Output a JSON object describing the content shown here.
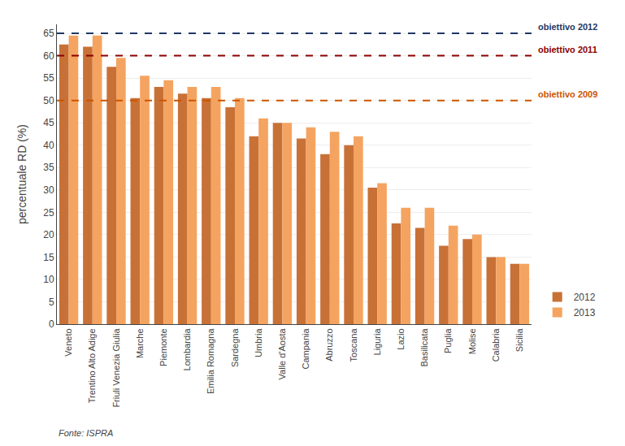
{
  "chart_data": {
    "type": "bar",
    "categories": [
      "Veneto",
      "Trentino Alto Adige",
      "Friuli Venezia Giulia",
      "Marche",
      "Piemonte",
      "Lombardia",
      "Emilia Romagna",
      "Sardegna",
      "Umbria",
      "Valle d'Aosta",
      "Campania",
      "Abruzzo",
      "Toscana",
      "Liguria",
      "Lazio",
      "Basilicata",
      "Puglia",
      "Molise",
      "Calabria",
      "Sicilia"
    ],
    "series": [
      {
        "name": "2012",
        "color": "#C87137",
        "values": [
          62.5,
          62.0,
          57.5,
          50.5,
          53.0,
          51.5,
          50.5,
          48.5,
          42.0,
          45.0,
          41.5,
          38.0,
          40.0,
          30.5,
          22.5,
          21.5,
          17.5,
          19.0,
          15.0,
          13.5
        ]
      },
      {
        "name": "2013",
        "color": "#F4A460",
        "values": [
          64.5,
          64.5,
          59.5,
          55.5,
          54.5,
          53.0,
          53.0,
          50.5,
          46.0,
          45.0,
          44.0,
          43.0,
          42.0,
          31.5,
          26.0,
          26.0,
          22.0,
          20.0,
          15.0,
          13.5
        ]
      }
    ],
    "y_label": "percentuale RD (%)",
    "ylim": [
      0,
      67
    ],
    "yticks": [
      0,
      5,
      10,
      15,
      20,
      25,
      30,
      35,
      40,
      45,
      50,
      55,
      60,
      65
    ],
    "grid": true,
    "legend": "lower right",
    "annotations": [
      {
        "text": "obiettivo 2012",
        "y": 65,
        "color": "#1F3864",
        "line_style": "dashed"
      },
      {
        "text": "obiettivo 2011",
        "y": 60,
        "color": "#8B0000",
        "line_style": "dashed"
      },
      {
        "text": "obiettivo 2009",
        "y": 50,
        "color": "#CC5500",
        "line_style": "dashed"
      },
      {
        "text": "Fonte: ISPRA"
      }
    ]
  }
}
